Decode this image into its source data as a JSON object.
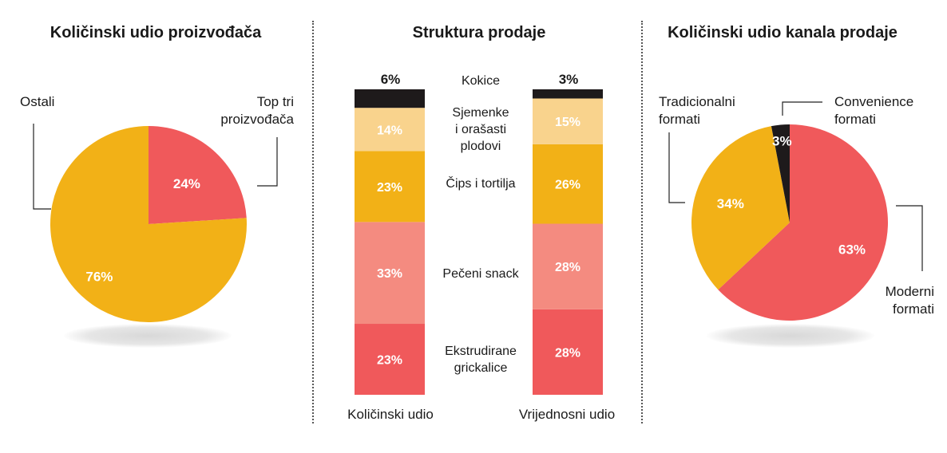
{
  "colors": {
    "dark": "#1e1a1b",
    "light_yellow": "#f9d38d",
    "yellow": "#f2b117",
    "pink": "#f48b80",
    "red": "#f0595b",
    "white": "#ffffff"
  },
  "chart_data": [
    {
      "type": "pie",
      "title": "Količinski udio proizvođača",
      "slices": [
        {
          "name": "Top tri proizvođača",
          "value": 24,
          "label": "24%",
          "color": "#f0595b"
        },
        {
          "name": "Ostali",
          "value": 76,
          "label": "76%",
          "color": "#f2b117"
        }
      ],
      "legend_labels": {
        "top_tri": "Top tri\nproizvođača",
        "ostali": "Ostali"
      }
    },
    {
      "type": "bar",
      "subtype": "stacked-100",
      "title": "Struktura prodaje",
      "columns": [
        "Količinski udio",
        "Vrijednosni udio"
      ],
      "categories": [
        "Ekstrudirane grickalice",
        "Pečeni snack",
        "Čips i tortilja",
        "Sjemenke i orašasti plodovi",
        "Kokice"
      ],
      "category_labels": [
        "Ekstrudirane\ngrickalice",
        "Pečeni snack",
        "Čips i tortilja",
        "Sjemenke\ni orašasti\nplodovi",
        "Kokice"
      ],
      "category_colors": [
        "#f0595b",
        "#f48b80",
        "#f2b117",
        "#f9d38d",
        "#1e1a1b"
      ],
      "series": [
        {
          "name": "Količinski udio",
          "values": [
            23,
            33,
            23,
            14,
            6
          ],
          "labels": [
            "23%",
            "33%",
            "23%",
            "14%",
            "6%"
          ]
        },
        {
          "name": "Vrijednosni udio",
          "values": [
            28,
            28,
            26,
            15,
            3
          ],
          "labels": [
            "28%",
            "28%",
            "26%",
            "15%",
            "3%"
          ]
        }
      ]
    },
    {
      "type": "pie",
      "title": "Količinski udio kanala prodaje",
      "slices": [
        {
          "name": "Moderni formati",
          "value": 63,
          "label": "63%",
          "color": "#f0595b"
        },
        {
          "name": "Tradicionalni formati",
          "value": 34,
          "label": "34%",
          "color": "#f2b117"
        },
        {
          "name": "Convenience formati",
          "value": 3,
          "label": "3%",
          "color": "#1e1a1b"
        }
      ],
      "legend_labels": {
        "moderni": "Moderni\nformati",
        "tradicionalni": "Tradicionalni\nformati",
        "convenience": "Convenience\nformati"
      }
    }
  ]
}
